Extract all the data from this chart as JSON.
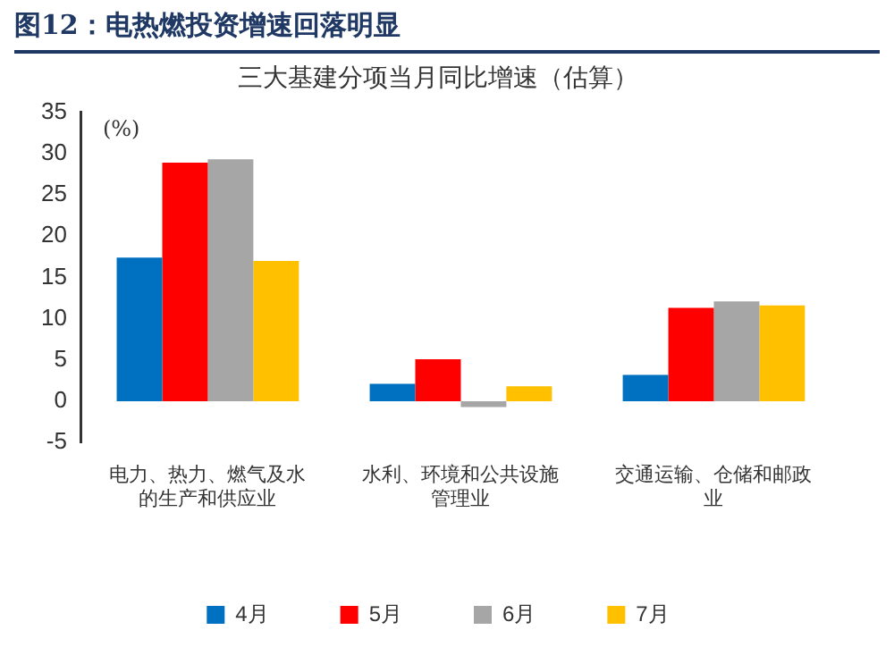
{
  "chart_data": {
    "type": "bar",
    "title": "图12：电热燃投资增速回落明显",
    "subtitle": "三大基建分项当月同比增速（估算）",
    "ylabel": "(%)",
    "categories": [
      "电力、热力、燃气及水的生产和供应业",
      "水利、环境和公共设施管理业",
      "交通运输、仓储和邮政业"
    ],
    "series": [
      {
        "name": "4月",
        "color": "#0070c0",
        "values": [
          17.4,
          2.1,
          3.2
        ]
      },
      {
        "name": "5月",
        "color": "#ff0000",
        "values": [
          28.9,
          5.1,
          11.3
        ]
      },
      {
        "name": "6月",
        "color": "#a6a6a6",
        "values": [
          29.3,
          -0.7,
          12.1
        ]
      },
      {
        "name": "7月",
        "color": "#ffc000",
        "values": [
          17.0,
          1.8,
          11.6
        ]
      }
    ],
    "ylim": [
      -5,
      35
    ],
    "yticks": [
      -5,
      0,
      5,
      10,
      15,
      20,
      25,
      30,
      35
    ],
    "grid": false,
    "legend": "bottom"
  }
}
